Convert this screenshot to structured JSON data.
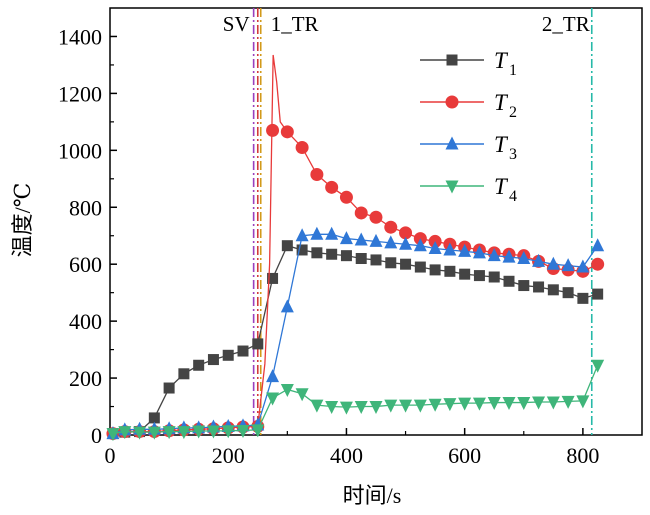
{
  "chart_data": {
    "type": "line",
    "xlabel": "时间/s",
    "ylabel": "温度/℃",
    "xlim": [
      0,
      900
    ],
    "ylim": [
      0,
      1500
    ],
    "x_ticks": [
      0,
      200,
      400,
      600,
      800
    ],
    "y_ticks": [
      0,
      200,
      400,
      600,
      800,
      1000,
      1200,
      1400
    ],
    "grid": false,
    "legend_position": "top-right",
    "annotations": [
      {
        "label": "SV",
        "x": 243,
        "color": "#9a3fbf"
      },
      {
        "label": "",
        "x": 250,
        "color": "#d23a3a"
      },
      {
        "label": "",
        "x": 255,
        "color": "#d29a1a"
      },
      {
        "label": "1_TR",
        "x": 255,
        "color": ""
      },
      {
        "label": "2_TR",
        "x": 815,
        "color": "#26b9a8"
      }
    ],
    "series": [
      {
        "name": "T",
        "sub": "1",
        "color": "#444444",
        "marker": "square",
        "x": [
          5,
          25,
          50,
          75,
          100,
          125,
          150,
          175,
          200,
          225,
          250,
          275,
          300,
          325,
          350,
          375,
          400,
          425,
          450,
          475,
          500,
          525,
          550,
          575,
          600,
          625,
          650,
          675,
          700,
          725,
          750,
          775,
          800,
          825
        ],
        "y": [
          5,
          10,
          12,
          60,
          165,
          215,
          245,
          265,
          280,
          295,
          320,
          550,
          665,
          650,
          640,
          635,
          630,
          620,
          615,
          605,
          600,
          590,
          580,
          575,
          565,
          560,
          555,
          540,
          525,
          520,
          510,
          500,
          480,
          495
        ]
      },
      {
        "name": "T",
        "sub": "2",
        "color": "#e83a3a",
        "marker": "circle",
        "x": [
          5,
          25,
          50,
          75,
          100,
          125,
          150,
          175,
          200,
          225,
          250,
          275,
          300,
          325,
          350,
          375,
          400,
          425,
          450,
          475,
          500,
          525,
          550,
          575,
          600,
          625,
          650,
          675,
          700,
          725,
          750,
          775,
          800,
          825
        ],
        "y": [
          5,
          12,
          12,
          12,
          15,
          18,
          20,
          22,
          25,
          28,
          30,
          1070,
          1065,
          1010,
          915,
          870,
          835,
          780,
          765,
          730,
          710,
          690,
          680,
          670,
          660,
          650,
          640,
          635,
          630,
          610,
          585,
          580,
          575,
          600
        ]
      },
      {
        "name": "T",
        "sub": "3",
        "color": "#2f77d6",
        "marker": "triangle-up",
        "x": [
          5,
          25,
          50,
          75,
          100,
          125,
          150,
          175,
          200,
          225,
          250,
          275,
          300,
          325,
          350,
          375,
          400,
          425,
          450,
          475,
          500,
          525,
          550,
          575,
          600,
          625,
          650,
          675,
          700,
          725,
          750,
          775,
          800,
          825
        ],
        "y": [
          5,
          18,
          20,
          20,
          22,
          25,
          25,
          28,
          30,
          32,
          35,
          205,
          450,
          700,
          705,
          705,
          690,
          685,
          680,
          675,
          670,
          665,
          655,
          650,
          645,
          640,
          630,
          625,
          620,
          610,
          600,
          595,
          590,
          665
        ]
      },
      {
        "name": "T",
        "sub": "4",
        "color": "#3fb57a",
        "marker": "triangle-down",
        "x": [
          5,
          25,
          50,
          75,
          100,
          125,
          150,
          175,
          200,
          225,
          250,
          275,
          300,
          325,
          350,
          375,
          400,
          425,
          450,
          475,
          500,
          525,
          550,
          575,
          600,
          625,
          650,
          675,
          700,
          725,
          750,
          775,
          800,
          825
        ],
        "y": [
          5,
          12,
          10,
          10,
          12,
          12,
          14,
          14,
          15,
          16,
          18,
          130,
          160,
          145,
          105,
          100,
          98,
          100,
          100,
          105,
          105,
          105,
          108,
          110,
          112,
          112,
          114,
          114,
          114,
          116,
          116,
          118,
          120,
          245
        ]
      }
    ],
    "peak_spike": {
      "x": 276,
      "y": 1335
    }
  }
}
